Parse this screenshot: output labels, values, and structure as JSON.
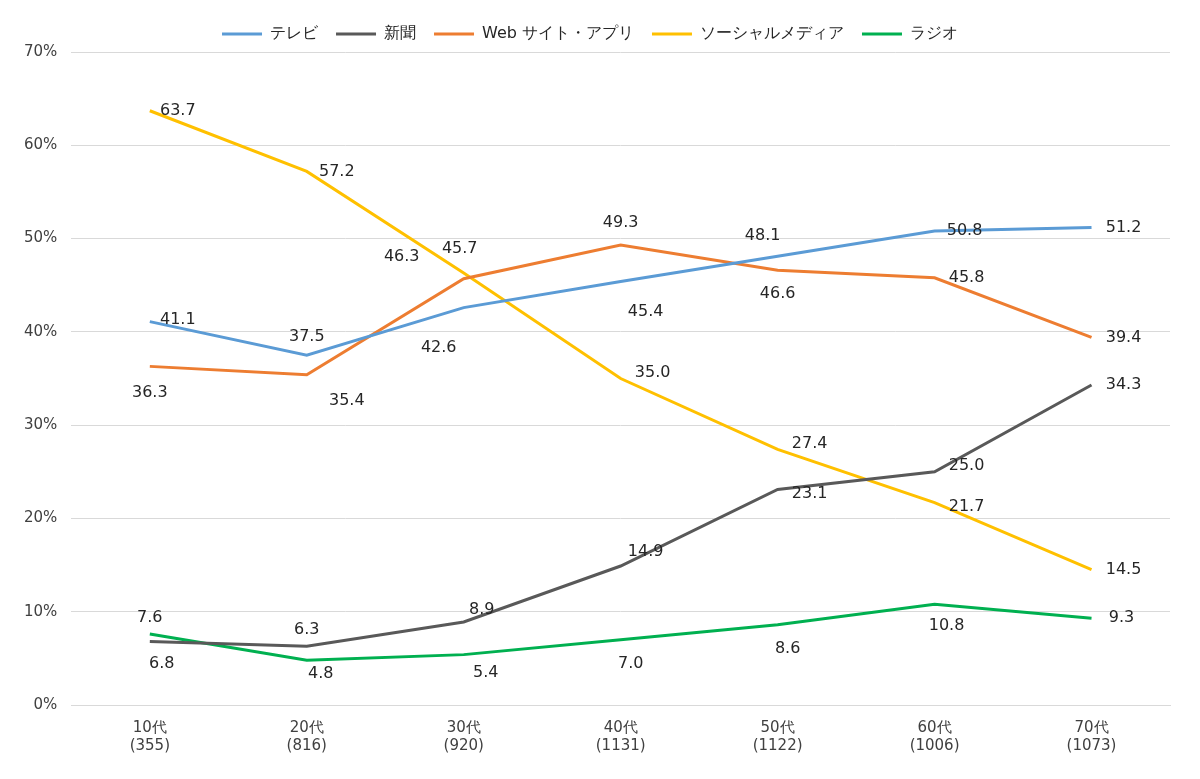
{
  "chart_data": {
    "type": "line",
    "categories": [
      [
        "10代",
        "(355)"
      ],
      [
        "20代",
        "(816)"
      ],
      [
        "30代",
        "(920)"
      ],
      [
        "40代",
        "(1131)"
      ],
      [
        "50代",
        "(1122)"
      ],
      [
        "60代",
        "(1006)"
      ],
      [
        "70代",
        "(1073)"
      ]
    ],
    "series": [
      {
        "name": "テレビ",
        "color": "#5b9bd5",
        "values": [
          41.1,
          37.5,
          42.6,
          45.4,
          48.1,
          50.8,
          51.2
        ],
        "value_labels": [
          "41.1",
          "37.5",
          "42.6",
          "45.4",
          "48.1",
          "50.8",
          "51.2"
        ]
      },
      {
        "name": "新聞",
        "color": "#595959",
        "values": [
          6.8,
          6.3,
          8.9,
          14.9,
          23.1,
          25.0,
          34.3
        ],
        "value_labels": [
          "6.8",
          "6.3",
          "8.9",
          "14.9",
          "23.1",
          "25.0",
          "34.3"
        ]
      },
      {
        "name": "Web サイト・アプリ",
        "color": "#ed7d31",
        "values": [
          36.3,
          35.4,
          45.7,
          49.3,
          46.6,
          45.8,
          39.4
        ],
        "value_labels": [
          "36.3",
          "35.4",
          "45.7",
          "49.3",
          "46.6",
          "45.8",
          "39.4"
        ]
      },
      {
        "name": "ソーシャルメディア",
        "color": "#ffc000",
        "values": [
          63.7,
          57.2,
          46.3,
          35.0,
          27.4,
          21.7,
          14.5
        ],
        "value_labels": [
          "63.7",
          "57.2",
          "46.3",
          "35.0",
          "27.4",
          "21.7",
          "14.5"
        ]
      },
      {
        "name": "ラジオ",
        "color": "#00b050",
        "values": [
          7.6,
          4.8,
          5.4,
          7.0,
          8.6,
          10.8,
          9.3
        ],
        "value_labels": [
          "7.6",
          "4.8",
          "5.4",
          "7.0",
          "8.6",
          "10.8",
          "9.3"
        ]
      }
    ],
    "ylim": [
      0,
      70
    ],
    "yticks": [
      {
        "value": 0,
        "label": "0%"
      },
      {
        "value": 10,
        "label": "10%"
      },
      {
        "value": 20,
        "label": "20%"
      },
      {
        "value": 30,
        "label": "30%"
      },
      {
        "value": 40,
        "label": "40%"
      },
      {
        "value": 50,
        "label": "50%"
      },
      {
        "value": 60,
        "label": "60%"
      },
      {
        "value": 70,
        "label": "70%"
      }
    ],
    "grid": true,
    "legend": "top",
    "data_labels": true
  }
}
